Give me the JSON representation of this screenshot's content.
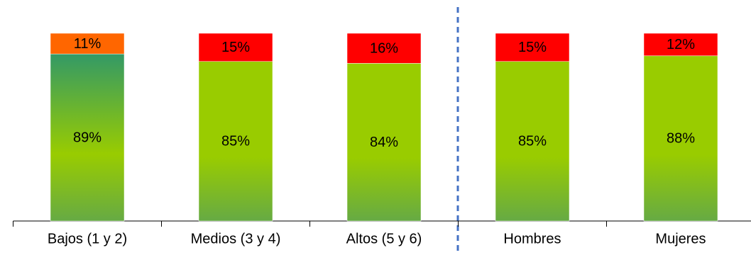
{
  "chart_data": {
    "type": "stacked_bar",
    "categories": [
      "Bajos (1 y 2)",
      "Medios (3 y 4)",
      "Altos (5 y 6)",
      "Hombres",
      "Mujeres"
    ],
    "series": [
      {
        "colors": [
          "#339966",
          "#99cc00",
          "#99cc00",
          "#99cc00",
          "#99cc00"
        ],
        "values": [
          89,
          85,
          84,
          85,
          88
        ],
        "value_labels": [
          "89%",
          "85%",
          "84%",
          "85%",
          "88%"
        ]
      },
      {
        "colors": [
          "#ff6600",
          "#ff0000",
          "#ff0000",
          "#ff0000",
          "#ff0000"
        ],
        "values": [
          11,
          15,
          16,
          15,
          12
        ],
        "value_labels": [
          "11%",
          "15%",
          "16%",
          "15%",
          "12%"
        ]
      }
    ],
    "ylim": [
      0,
      100
    ]
  }
}
